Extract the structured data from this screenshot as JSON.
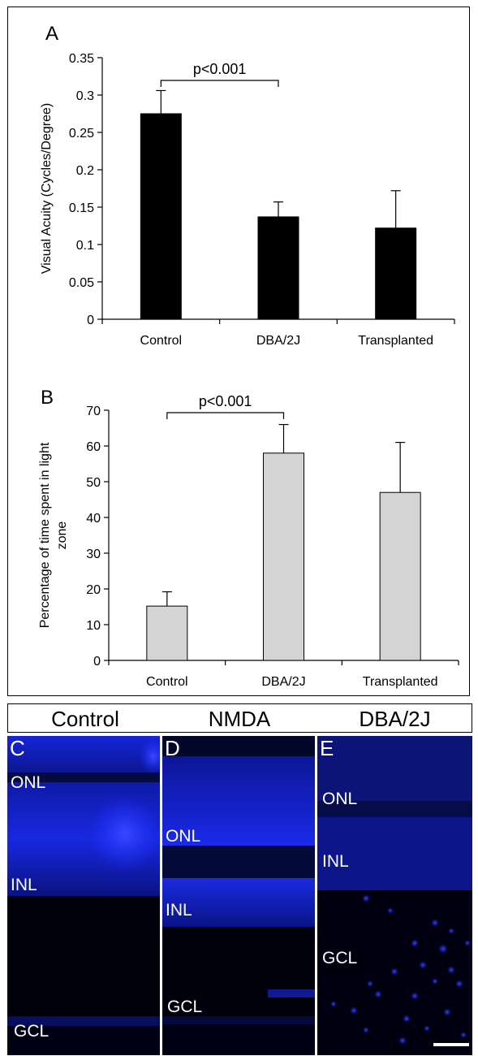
{
  "chart_data": [
    {
      "panel_label": "A",
      "type": "bar",
      "categories": [
        "Control",
        "DBA/2J",
        "Transplanted"
      ],
      "values": [
        0.275,
        0.137,
        0.122
      ],
      "errors": [
        0.031,
        0.02,
        0.05
      ],
      "ylabel": "Visual Acuity (Cycles/Degree)",
      "ylim": [
        0,
        0.35
      ],
      "yticks": [
        "0",
        "0.05",
        "0.1",
        "0.15",
        "0.2",
        "0.25",
        "0.3",
        "0.35"
      ],
      "bar_color": "#000000",
      "annotation": "p<0.001"
    },
    {
      "panel_label": "B",
      "type": "bar",
      "categories": [
        "Control",
        "DBA/2J",
        "Transplanted"
      ],
      "values": [
        15.2,
        58.0,
        47.0
      ],
      "errors": [
        4.0,
        8.0,
        14.0
      ],
      "ylabel": "Percentage of time spent in light zone",
      "ylabel_lines": [
        "Percentage of time spent in light",
        "zone"
      ],
      "ylim": [
        0,
        70
      ],
      "yticks": [
        "0",
        "10",
        "20",
        "30",
        "40",
        "50",
        "60",
        "70"
      ],
      "bar_color": "#d4d4d4",
      "annotation": "p<0.001"
    }
  ],
  "micrographs": {
    "headers": {
      "control": "Control",
      "nmda": "NMDA",
      "dba": "DBA/2J"
    },
    "panels": {
      "c": {
        "letter": "C",
        "onl": "ONL",
        "inl": "INL",
        "gcl": "GCL"
      },
      "d": {
        "letter": "D",
        "onl": "ONL",
        "inl": "INL",
        "gcl": "GCL"
      },
      "e": {
        "letter": "E",
        "onl": "ONL",
        "inl": "INL",
        "gcl": "GCL"
      }
    },
    "stain_color": "#1a2cff"
  }
}
